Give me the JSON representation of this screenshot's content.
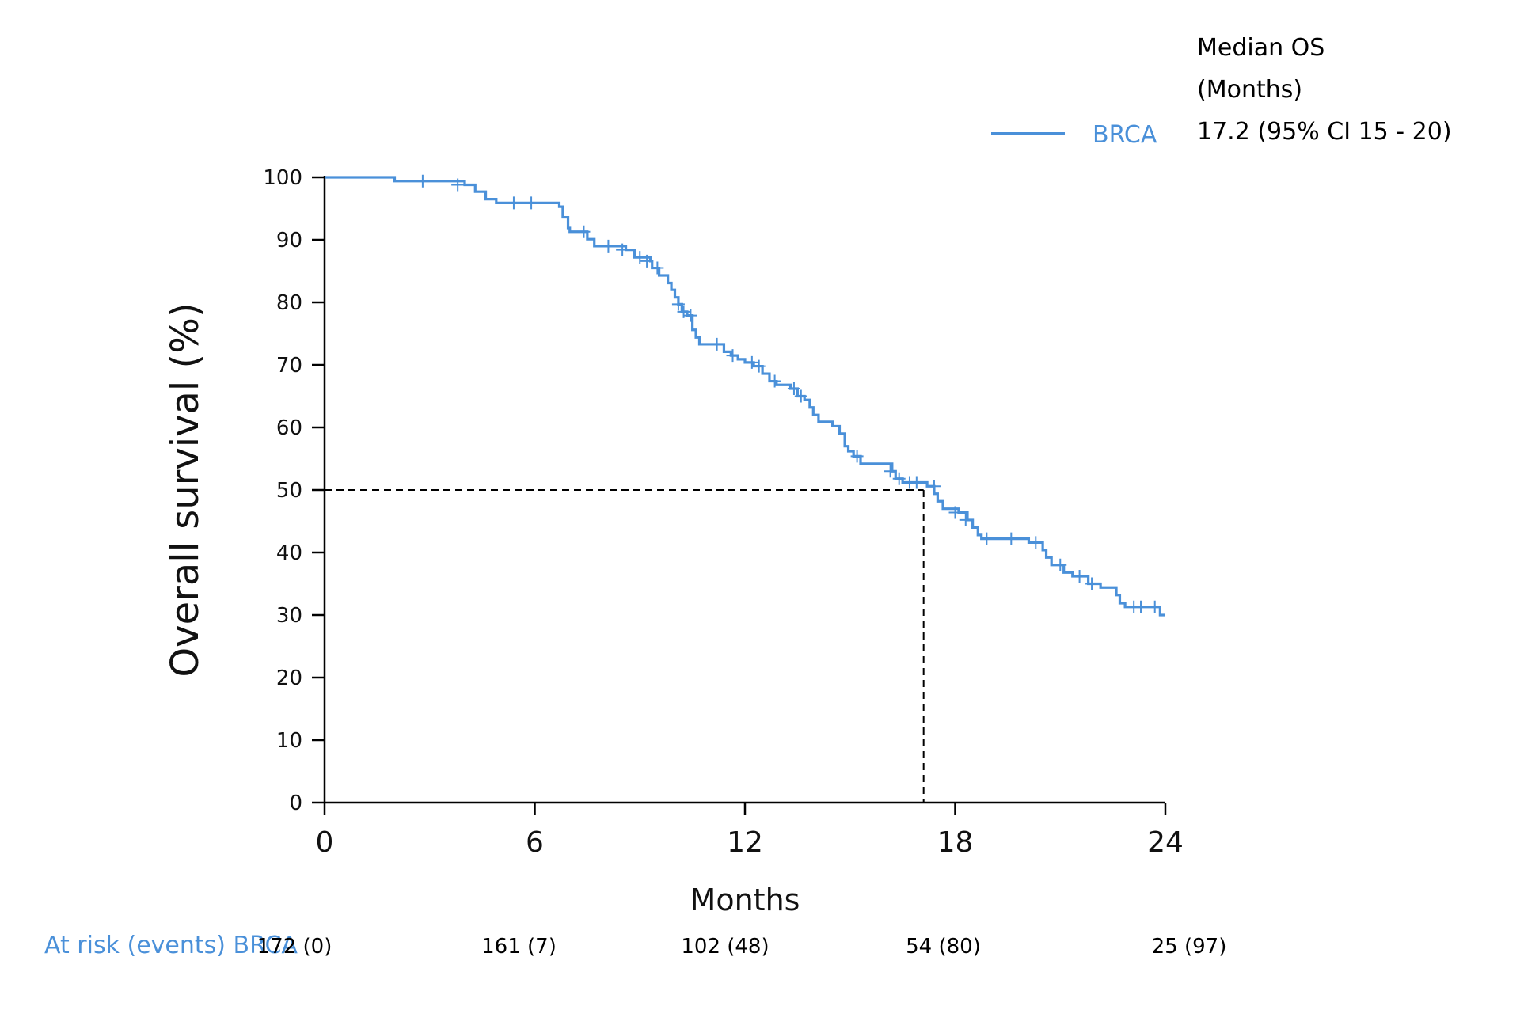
{
  "chart_data": {
    "type": "line",
    "xlabel": "Months",
    "ylabel": "Overall survival (%)",
    "xlim": [
      0,
      24
    ],
    "ylim": [
      0,
      100
    ],
    "xticks": [
      0,
      6,
      12,
      18,
      24
    ],
    "yticks": [
      0,
      10,
      20,
      30,
      40,
      50,
      60,
      70,
      80,
      90,
      100
    ],
    "grid": false,
    "legend_placement": "top-right",
    "legend_header": [
      "Median OS",
      "(Months)"
    ],
    "series": [
      {
        "name": "BRCA",
        "color": "#4a90d9",
        "median_label": "17.2 (95% CI 15 - 20)",
        "median": 17.2,
        "steps": [
          [
            0,
            100
          ],
          [
            2,
            99.4
          ],
          [
            4,
            98.8
          ],
          [
            4.3,
            97.7
          ],
          [
            4.6,
            96.5
          ],
          [
            4.9,
            95.9
          ],
          [
            6.7,
            95.3
          ],
          [
            6.8,
            93.6
          ],
          [
            6.95,
            91.9
          ],
          [
            7.0,
            91.3
          ],
          [
            7.5,
            90.1
          ],
          [
            7.7,
            89.0
          ],
          [
            8.6,
            88.4
          ],
          [
            8.85,
            87.2
          ],
          [
            9.3,
            86.6
          ],
          [
            9.35,
            85.5
          ],
          [
            9.55,
            84.3
          ],
          [
            9.8,
            83.1
          ],
          [
            9.9,
            82.0
          ],
          [
            10.0,
            80.8
          ],
          [
            10.1,
            79.7
          ],
          [
            10.2,
            78.5
          ],
          [
            10.35,
            77.9
          ],
          [
            10.5,
            75.6
          ],
          [
            10.6,
            74.4
          ],
          [
            10.7,
            73.3
          ],
          [
            11.4,
            72.1
          ],
          [
            11.6,
            71.5
          ],
          [
            11.8,
            70.9
          ],
          [
            12.0,
            70.4
          ],
          [
            12.25,
            69.8
          ],
          [
            12.5,
            68.6
          ],
          [
            12.7,
            67.4
          ],
          [
            12.9,
            66.8
          ],
          [
            13.3,
            66.2
          ],
          [
            13.5,
            65.0
          ],
          [
            13.7,
            64.4
          ],
          [
            13.85,
            63.2
          ],
          [
            13.95,
            62.0
          ],
          [
            14.1,
            60.9
          ],
          [
            14.5,
            60.2
          ],
          [
            14.7,
            59.0
          ],
          [
            14.85,
            57.0
          ],
          [
            14.95,
            56.2
          ],
          [
            15.1,
            55.4
          ],
          [
            15.3,
            54.2
          ],
          [
            16.2,
            53.0
          ],
          [
            16.3,
            51.8
          ],
          [
            16.5,
            51.2
          ],
          [
            17.2,
            50.6
          ],
          [
            17.4,
            49.4
          ],
          [
            17.5,
            48.2
          ],
          [
            17.65,
            47.0
          ],
          [
            18.1,
            46.4
          ],
          [
            18.35,
            45.2
          ],
          [
            18.5,
            44.0
          ],
          [
            18.65,
            42.8
          ],
          [
            18.75,
            42.2
          ],
          [
            20.1,
            41.6
          ],
          [
            20.5,
            40.4
          ],
          [
            20.6,
            39.2
          ],
          [
            20.75,
            38.0
          ],
          [
            21.1,
            36.8
          ],
          [
            21.35,
            36.2
          ],
          [
            21.8,
            35.0
          ],
          [
            22.15,
            34.4
          ],
          [
            22.6,
            33.2
          ],
          [
            22.7,
            31.9
          ],
          [
            22.85,
            31.3
          ],
          [
            23.85,
            30.0
          ],
          [
            24.0,
            30.0
          ]
        ],
        "censored": [
          [
            2.8,
            99.4
          ],
          [
            3.8,
            98.8
          ],
          [
            5.4,
            95.9
          ],
          [
            5.9,
            95.9
          ],
          [
            7.4,
            91.3
          ],
          [
            8.1,
            89.0
          ],
          [
            8.5,
            88.4
          ],
          [
            9.0,
            87.2
          ],
          [
            9.2,
            86.6
          ],
          [
            9.5,
            85.5
          ],
          [
            10.1,
            79.7
          ],
          [
            10.25,
            78.5
          ],
          [
            10.45,
            77.9
          ],
          [
            11.2,
            73.3
          ],
          [
            11.65,
            71.5
          ],
          [
            12.2,
            70.4
          ],
          [
            12.4,
            69.8
          ],
          [
            12.85,
            67.4
          ],
          [
            13.4,
            66.2
          ],
          [
            13.6,
            65.0
          ],
          [
            15.2,
            55.4
          ],
          [
            16.15,
            53.0
          ],
          [
            16.4,
            51.8
          ],
          [
            16.7,
            51.2
          ],
          [
            16.9,
            51.2
          ],
          [
            17.4,
            50.6
          ],
          [
            18.0,
            46.4
          ],
          [
            18.3,
            45.2
          ],
          [
            18.9,
            42.2
          ],
          [
            19.6,
            42.2
          ],
          [
            20.3,
            41.6
          ],
          [
            21.0,
            38.0
          ],
          [
            21.55,
            36.2
          ],
          [
            21.9,
            35.0
          ],
          [
            23.1,
            31.3
          ],
          [
            23.3,
            31.3
          ],
          [
            23.7,
            31.3
          ]
        ]
      }
    ],
    "reference": {
      "y": 50,
      "x": 17.1
    },
    "at_risk": {
      "label": "At risk (events) BRCA",
      "times": [
        0,
        6,
        12,
        18,
        24
      ],
      "values": [
        "172 (0)",
        "161 (7)",
        "102 (48)",
        "54 (80)",
        "25 (97)"
      ]
    }
  }
}
